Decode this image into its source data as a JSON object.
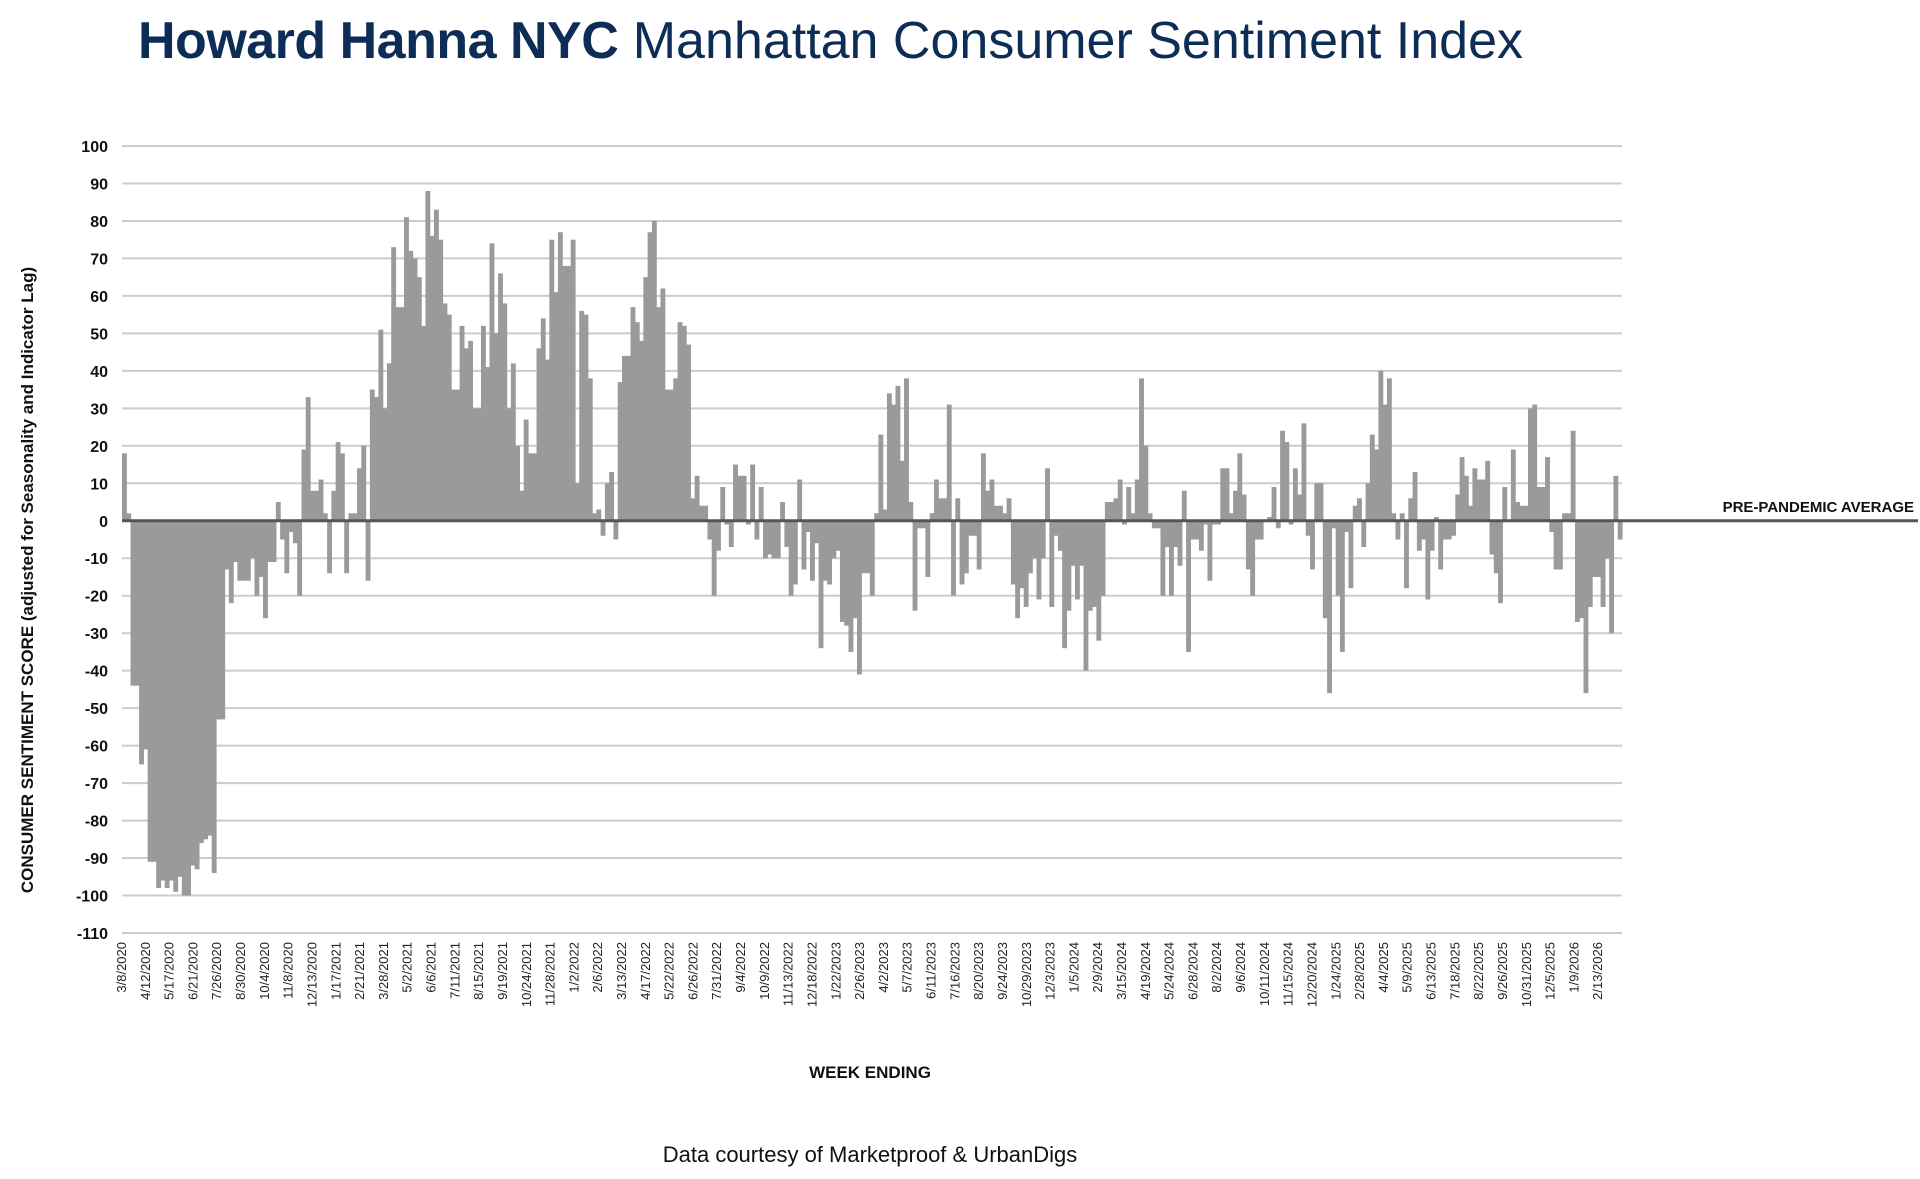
{
  "title": {
    "brand": "Howard Hanna NYC",
    "rest": " Manhattan Consumer Sentiment Index"
  },
  "footer": "Data courtesy of Marketproof & UrbanDigs",
  "colors": {
    "title": "#0d2d56",
    "bar": "#9a9a9a",
    "grid": "#cccccc",
    "reference_line": "#555555"
  },
  "chart_data": {
    "type": "bar",
    "title": "",
    "xlabel": "WEEK ENDING",
    "ylabel": "CONSUMER SENTIMENT SCORE (adjusted for Seasonality and Indicator Lag)",
    "ylim": [
      -110,
      100
    ],
    "yticks": [
      100,
      90,
      80,
      70,
      60,
      50,
      40,
      30,
      20,
      10,
      0,
      -10,
      -20,
      -30,
      -40,
      -50,
      -60,
      -70,
      -80,
      -90,
      -100,
      -110
    ],
    "grid": true,
    "reference_line": {
      "value": 0,
      "label": "PRE-PANDEMIC  AVERAGE"
    },
    "x_tick_labels": [
      "3/8/2020",
      "4/12/2020",
      "5/17/2020",
      "6/21/2020",
      "7/26/2020",
      "8/30/2020",
      "10/4/2020",
      "11/8/2020",
      "12/13/2020",
      "1/17/2021",
      "2/21/2021",
      "3/28/2021",
      "5/2/2021",
      "6/6/2021",
      "7/11/2021",
      "8/15/2021",
      "9/19/2021",
      "10/24/2021",
      "11/28/2021",
      "1/2/2022",
      "2/6/2022",
      "3/13/2022",
      "4/17/2022",
      "5/22/2022",
      "6/26/2022",
      "7/31/2022",
      "9/4/2022",
      "10/9/2022",
      "11/13/2022",
      "12/18/2022",
      "1/22/2023",
      "2/26/2023",
      "4/2/2023",
      "5/7/2023",
      "6/11/2023",
      "7/16/2023",
      "8/20/2023",
      "9/24/2023",
      "10/29/2023",
      "12/3/2023",
      "1/5/2024",
      "2/9/2024",
      "3/15/2024",
      "4/19/2024",
      "5/24/2024",
      "6/28/2024",
      "8/2/2024",
      "9/6/2024",
      "10/11/2024",
      "11/15/2024",
      "12/20/2024",
      "1/24/2025",
      "2/28/2025",
      "4/4/2025",
      "5/9/2025",
      "6/13/2025",
      "7/18/2025",
      "8/22/2025",
      "9/26/2025",
      "10/31/2025",
      "12/5/2025",
      "1/9/2026",
      "2/13/2026"
    ],
    "values": [
      18,
      2,
      -44,
      -44,
      -65,
      -61,
      -91,
      -91,
      -98,
      -96,
      -98,
      -96,
      -99,
      -95,
      -100,
      -100,
      -92,
      -93,
      -86,
      -85,
      -84,
      -94,
      -53,
      -53,
      -13,
      -22,
      -11,
      -16,
      -16,
      -16,
      -10,
      -20,
      -15,
      -26,
      -11,
      -11,
      5,
      -5,
      -14,
      -3,
      -6,
      -20,
      19,
      33,
      8,
      8,
      11,
      2,
      -14,
      8,
      21,
      18,
      -14,
      2,
      2,
      14,
      20,
      -16,
      35,
      33,
      51,
      30,
      42,
      73,
      57,
      57,
      81,
      72,
      70,
      65,
      52,
      88,
      76,
      83,
      75,
      58,
      55,
      35,
      35,
      52,
      46,
      48,
      30,
      30,
      52,
      41,
      74,
      50,
      66,
      58,
      30,
      42,
      20,
      8,
      27,
      18,
      18,
      46,
      54,
      43,
      75,
      61,
      77,
      68,
      68,
      75,
      10,
      56,
      55,
      38,
      2,
      3,
      -4,
      10,
      13,
      -5,
      37,
      44,
      44,
      57,
      53,
      48,
      65,
      77,
      80,
      57,
      62,
      35,
      35,
      38,
      53,
      52,
      47,
      6,
      12,
      4,
      4,
      -5,
      -20,
      -8,
      9,
      -1,
      -7,
      15,
      12,
      12,
      -1,
      15,
      -5,
      9,
      -10,
      -9,
      -10,
      -10,
      5,
      -7,
      -20,
      -17,
      11,
      -13,
      -3,
      -16,
      -6,
      -34,
      -16,
      -17,
      -10,
      -8,
      -27,
      -28,
      -35,
      -26,
      -41,
      -14,
      -14,
      -20,
      2,
      23,
      3,
      34,
      31,
      36,
      16,
      38,
      5,
      -24,
      -2,
      -2,
      -15,
      2,
      11,
      6,
      6,
      31,
      -20,
      6,
      -17,
      -14,
      -4,
      -4,
      -13,
      18,
      8,
      11,
      4,
      4,
      2,
      6,
      -17,
      -26,
      -18,
      -23,
      -14,
      -10,
      -21,
      -10,
      14,
      -23,
      -4,
      -8,
      -34,
      -24,
      -12,
      -21,
      -12,
      -40,
      -24,
      -23,
      -32,
      -20,
      5,
      5,
      6,
      11,
      -1,
      9,
      2,
      11,
      38,
      20,
      2,
      -2,
      -2,
      -20,
      -7,
      -20,
      -7,
      -12,
      8,
      -35,
      -5,
      -5,
      -8,
      -1,
      -16,
      -1,
      -1,
      14,
      14,
      2,
      8,
      18,
      7,
      -13,
      -20,
      -5,
      -5,
      0,
      1,
      9,
      -2,
      24,
      21,
      -1,
      14,
      7,
      26,
      -4,
      -13,
      10,
      10,
      -26,
      -46,
      -2,
      -20,
      -35,
      -3,
      -18,
      4,
      6,
      -7,
      10,
      23,
      19,
      40,
      31,
      38,
      2,
      -5,
      2,
      -18,
      6,
      13,
      -8,
      -5,
      -21,
      -8,
      1,
      -13,
      -5,
      -5,
      -4,
      7,
      17,
      12,
      4,
      14,
      11,
      11,
      16,
      -9,
      -14,
      -22,
      9,
      0,
      19,
      5,
      4,
      4,
      30,
      31,
      9,
      9,
      17,
      -3,
      -13,
      -13,
      2,
      2,
      24,
      -27,
      -26,
      -46,
      -23,
      -15,
      -15,
      -23,
      -10,
      -30,
      12,
      -5
    ]
  }
}
